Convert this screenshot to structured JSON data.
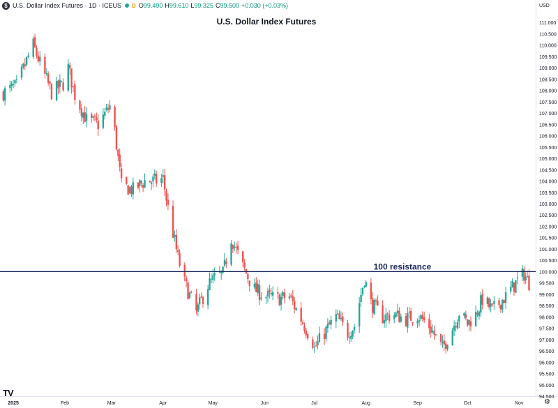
{
  "header": {
    "symbol": "U.S. Dollar Index Futures · 1D · ICEUS",
    "logo_letter": "$",
    "badge": "D",
    "o_label": "O",
    "o": "99.490",
    "h_label": "H",
    "h": "99.610",
    "l_label": "L",
    "l": "99.325",
    "c_label": "C",
    "c": "99.500",
    "change": "+0.030 (+0.03%)",
    "icon": "bar-chart-icon"
  },
  "currency": "USD",
  "colors": {
    "up": "#26a69a",
    "down": "#ef5350",
    "resistance": "#1a2a5e",
    "text": "#131722"
  },
  "tv_logo": "TV",
  "chart_data": {
    "type": "candlestick",
    "title": "U.S. Dollar Index Futures",
    "ylim": [
      94.5,
      111.5
    ],
    "ytick_start": 94.5,
    "ytick_end": 111.0,
    "ytick_step": 0.5,
    "ytick_decimals": 3,
    "x_range": [
      "2024-12-24",
      "2025-11-11"
    ],
    "xticks": [
      {
        "label": "2025",
        "date": "2025-01-01"
      },
      {
        "label": "Feb",
        "date": "2025-02-01"
      },
      {
        "label": "Mar",
        "date": "2025-03-01"
      },
      {
        "label": "Apr",
        "date": "2025-04-01"
      },
      {
        "label": "May",
        "date": "2025-05-01"
      },
      {
        "label": "Jun",
        "date": "2025-06-01"
      },
      {
        "label": "Jul",
        "date": "2025-07-01"
      },
      {
        "label": "Aug",
        "date": "2025-08-01"
      },
      {
        "label": "Sep",
        "date": "2025-09-01"
      },
      {
        "label": "Oct",
        "date": "2025-10-01"
      },
      {
        "label": "Nov",
        "date": "2025-11-01"
      }
    ],
    "resistance": {
      "value": 100.0,
      "label": "100 resistance"
    },
    "last_price": 99.5,
    "closes": [
      [
        "2024-12-26",
        107.9
      ],
      [
        "2025-01-03",
        108.2
      ],
      [
        "2025-01-10",
        109.5
      ],
      [
        "2025-01-13",
        110.0
      ],
      [
        "2025-01-17",
        109.2
      ],
      [
        "2025-01-24",
        107.9
      ],
      [
        "2025-01-31",
        108.3
      ],
      [
        "2025-02-03",
        109.0
      ],
      [
        "2025-02-07",
        107.8
      ],
      [
        "2025-02-14",
        106.7
      ],
      [
        "2025-02-21",
        106.5
      ],
      [
        "2025-02-28",
        107.3
      ],
      [
        "2025-03-03",
        106.2
      ],
      [
        "2025-03-07",
        103.8
      ],
      [
        "2025-03-14",
        103.6
      ],
      [
        "2025-03-21",
        104.0
      ],
      [
        "2025-03-28",
        104.0
      ],
      [
        "2025-04-01",
        104.1
      ],
      [
        "2025-04-04",
        102.8
      ],
      [
        "2025-04-10",
        100.6
      ],
      [
        "2025-04-14",
        99.5
      ],
      [
        "2025-04-21",
        98.2
      ],
      [
        "2025-04-28",
        99.4
      ],
      [
        "2025-05-02",
        99.7
      ],
      [
        "2025-05-07",
        99.9
      ],
      [
        "2025-05-12",
        101.5
      ],
      [
        "2025-05-19",
        100.2
      ],
      [
        "2025-05-26",
        99.2
      ],
      [
        "2025-06-02",
        98.9
      ],
      [
        "2025-06-09",
        98.8
      ],
      [
        "2025-06-16",
        98.9
      ],
      [
        "2025-06-23",
        97.9
      ],
      [
        "2025-06-30",
        96.9
      ],
      [
        "2025-07-01",
        96.6
      ],
      [
        "2025-07-07",
        97.3
      ],
      [
        "2025-07-14",
        98.0
      ],
      [
        "2025-07-21",
        97.3
      ],
      [
        "2025-07-25",
        97.6
      ],
      [
        "2025-07-31",
        99.7
      ],
      [
        "2025-08-04",
        98.6
      ],
      [
        "2025-08-11",
        98.0
      ],
      [
        "2025-08-18",
        98.1
      ],
      [
        "2025-08-25",
        97.9
      ],
      [
        "2025-09-01",
        98.1
      ],
      [
        "2025-09-08",
        97.6
      ],
      [
        "2025-09-16",
        96.6
      ],
      [
        "2025-09-22",
        97.5
      ],
      [
        "2025-09-26",
        98.2
      ],
      [
        "2025-10-01",
        97.7
      ],
      [
        "2025-10-06",
        98.1
      ],
      [
        "2025-10-10",
        98.8
      ],
      [
        "2025-10-16",
        98.3
      ],
      [
        "2025-10-24",
        98.9
      ],
      [
        "2025-10-31",
        99.6
      ],
      [
        "2025-11-04",
        99.9
      ],
      [
        "2025-11-07",
        99.5
      ]
    ]
  }
}
